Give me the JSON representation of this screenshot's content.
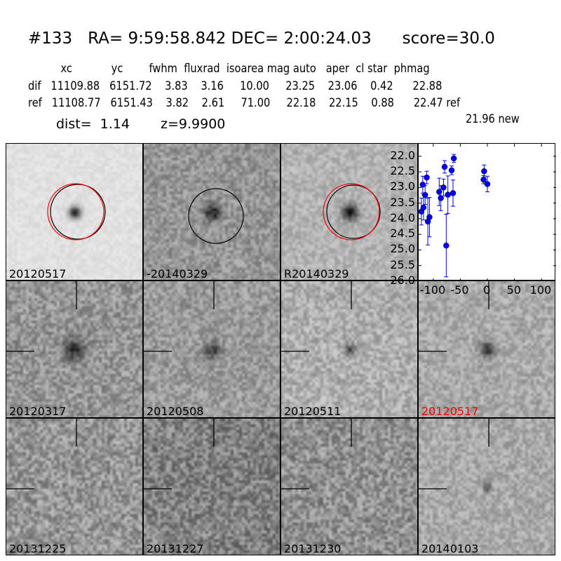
{
  "header": {
    "title": "#133   RA= 9:59:58.842 DEC= 2:00:24.03      score=30.0",
    "columns": "          xc            yc        fwhm  fluxrad  isoarea mag auto   aper  cl star  phmag",
    "dif_row": "dif   11109.88   6151.72    3.83    3.16     10.00     23.25    23.06    0.42      22.88",
    "ref_row": "ref   11108.77   6151.43    3.82    2.61     71.00     22.18    22.15    0.88      22.47 ref",
    "new_mag": "21.96 new",
    "dist": "dist=  1.14",
    "z": "z=9.9900"
  },
  "stamps": [
    {
      "label": "20120517",
      "color": "#000000"
    },
    {
      "label": "-20140329",
      "color": "#000000"
    },
    {
      "label": "R20140329",
      "color": "#000000"
    },
    {
      "label": "20120317",
      "color": "#000000"
    },
    {
      "label": "20120508",
      "color": "#000000"
    },
    {
      "label": "20120511",
      "color": "#000000"
    },
    {
      "label": "20120517",
      "color": "#ff0000"
    },
    {
      "label": "20131225",
      "color": "#000000"
    },
    {
      "label": "20131227",
      "color": "#000000"
    },
    {
      "label": "20131230",
      "color": "#000000"
    },
    {
      "label": "20140103",
      "color": "#000000"
    }
  ],
  "chart_data": {
    "type": "scatter",
    "title": "",
    "xlabel": "",
    "ylabel": "",
    "xlim": [
      -127,
      127
    ],
    "ylim": [
      26.0,
      21.6
    ],
    "y_inverted": true,
    "xticks": [
      "-100",
      "-50",
      "0",
      "50",
      "100"
    ],
    "xtick_values": [
      -100,
      -50,
      0,
      50,
      100
    ],
    "yticks": [
      "22.0",
      "22.5",
      "23.0",
      "23.5",
      "24.0",
      "24.5",
      "25.0",
      "25.5",
      "26.0"
    ],
    "ytick_values": [
      22.0,
      22.5,
      23.0,
      23.5,
      24.0,
      24.5,
      25.0,
      25.5,
      26.0
    ],
    "color": "#0000ff",
    "points": [
      {
        "x": -122,
        "y": 23.77,
        "err": 0.43
      },
      {
        "x": -119.5,
        "y": 22.91,
        "err": 0.27
      },
      {
        "x": -118,
        "y": 23.64,
        "err": 0.4
      },
      {
        "x": -115,
        "y": 23.24,
        "err": 0.3
      },
      {
        "x": -112,
        "y": 22.68,
        "err": 0.2
      },
      {
        "x": -110,
        "y": 24.09,
        "err": 0.75
      },
      {
        "x": -107,
        "y": 23.95,
        "err": 0.63
      },
      {
        "x": -89,
        "y": 23.14,
        "err": 0.44
      },
      {
        "x": -86,
        "y": 23.34,
        "err": 0.4
      },
      {
        "x": -81,
        "y": 23.0,
        "err": 0.27
      },
      {
        "x": -79,
        "y": 22.34,
        "err": 0.2
      },
      {
        "x": -76,
        "y": 24.86,
        "err": 1.0
      },
      {
        "x": -73,
        "y": 23.23,
        "err": 0.6
      },
      {
        "x": -66,
        "y": 22.45,
        "err": 0.14
      },
      {
        "x": -63.5,
        "y": 23.18,
        "err": 0.42
      },
      {
        "x": -62,
        "y": 22.07,
        "err": 0.13
      },
      {
        "x": -7,
        "y": 22.75,
        "err": 0.13
      },
      {
        "x": -6,
        "y": 22.48,
        "err": 0.2
      },
      {
        "x": 0,
        "y": 22.89,
        "err": 0.25
      }
    ]
  }
}
